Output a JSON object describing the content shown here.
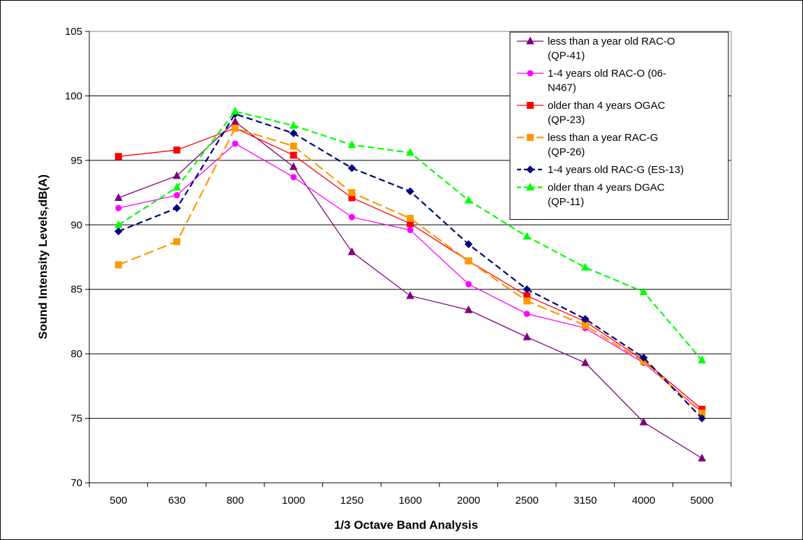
{
  "chart_data": {
    "type": "line",
    "title": "",
    "xlabel": "1/3 Octave Band Analysis",
    "ylabel": "Sound Intensity Levels,dB(A)",
    "ylim": [
      70,
      105
    ],
    "yticks": [
      70,
      75,
      80,
      85,
      90,
      95,
      100,
      105
    ],
    "grid": "horizontal",
    "legend_position": "top-right",
    "categories": [
      "500",
      "630",
      "800",
      "1000",
      "1250",
      "1600",
      "2000",
      "2500",
      "3150",
      "4000",
      "5000"
    ],
    "series": [
      {
        "name": "less than a year old RAC-O (QP-41)",
        "legend_lines": [
          "less than a year old RAC-O",
          "(QP-41)"
        ],
        "color": "#800080",
        "dash": "solid",
        "marker": "triangle",
        "values": [
          92.1,
          93.8,
          98.0,
          94.5,
          87.9,
          84.5,
          83.4,
          81.3,
          79.3,
          74.7,
          71.9
        ]
      },
      {
        "name": "1-4 years old RAC-O (06-N467)",
        "legend_lines": [
          "1-4 years old RAC-O (06-",
          "N467)"
        ],
        "color": "#ff00ff",
        "dash": "solid",
        "marker": "circle",
        "values": [
          91.3,
          92.3,
          96.3,
          93.7,
          90.6,
          89.6,
          85.4,
          83.1,
          82.0,
          79.3,
          75.5
        ]
      },
      {
        "name": "older than 4 years OGAC (QP-23)",
        "legend_lines": [
          "older than 4 years OGAC",
          "(QP-23)"
        ],
        "color": "#ff0000",
        "dash": "solid",
        "marker": "square",
        "values": [
          95.3,
          95.8,
          97.5,
          95.4,
          92.1,
          90.1,
          87.2,
          84.5,
          82.5,
          79.5,
          75.7
        ]
      },
      {
        "name": "less than a  year RAC-G (QP-26)",
        "legend_lines": [
          "less than a  year RAC-G",
          "(QP-26)"
        ],
        "color": "#ff9900",
        "dash": "long-dash",
        "marker": "square",
        "values": [
          86.9,
          88.7,
          97.5,
          96.1,
          92.5,
          90.5,
          87.2,
          84.1,
          82.2,
          79.4,
          75.4
        ]
      },
      {
        "name": "1-4 years old RAC-G (ES-13)",
        "legend_lines": [
          "1-4 years old RAC-G (ES-13)"
        ],
        "color": "#000080",
        "dash": "dash",
        "marker": "diamond",
        "values": [
          89.5,
          91.3,
          98.6,
          97.1,
          94.4,
          92.6,
          88.5,
          85.0,
          82.7,
          79.7,
          75.0
        ]
      },
      {
        "name": "older than 4 years DGAC (QP-11)",
        "legend_lines": [
          "older than 4 years DGAC",
          "(QP-11)"
        ],
        "color": "#00ff00",
        "dash": "dash",
        "marker": "triangle",
        "values": [
          90.0,
          92.9,
          98.8,
          97.7,
          96.2,
          95.6,
          91.9,
          89.1,
          86.7,
          84.8,
          79.5
        ]
      }
    ]
  }
}
